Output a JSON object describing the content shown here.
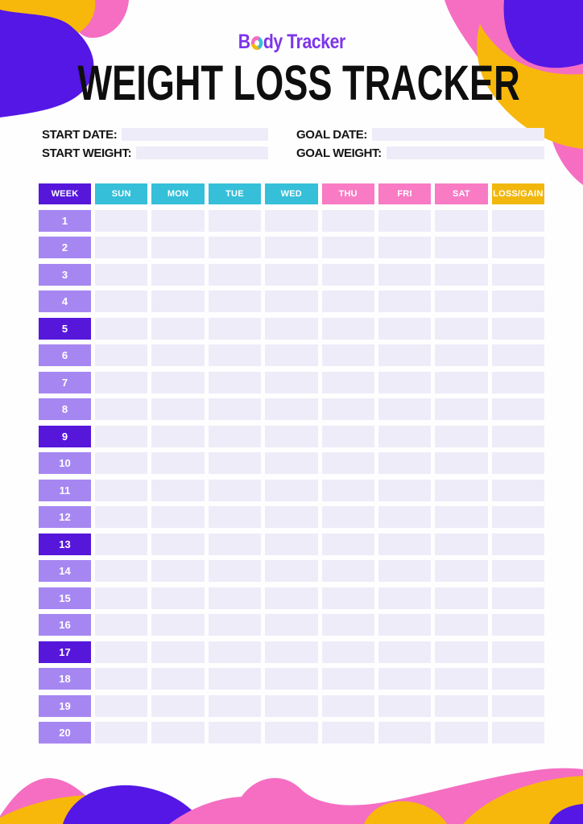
{
  "brand": {
    "logo_text_before_o": "B",
    "logo_text_after_o": "dy Tracker"
  },
  "title": "WEIGHT LOSS TRACKER",
  "fields": [
    {
      "id": "start-date",
      "label": "START DATE:",
      "value": ""
    },
    {
      "id": "goal-date",
      "label": "GOAL DATE:",
      "value": ""
    },
    {
      "id": "start-weight",
      "label": "START WEIGHT:",
      "value": ""
    },
    {
      "id": "goal-weight",
      "label": "GOAL WEIGHT:",
      "value": ""
    }
  ],
  "table": {
    "columns": [
      {
        "label": "WEEK",
        "color": "purple"
      },
      {
        "label": "SUN",
        "color": "cyan"
      },
      {
        "label": "MON",
        "color": "cyan"
      },
      {
        "label": "TUE",
        "color": "cyan"
      },
      {
        "label": "WED",
        "color": "cyan"
      },
      {
        "label": "THU",
        "color": "pink"
      },
      {
        "label": "FRI",
        "color": "pink"
      },
      {
        "label": "SAT",
        "color": "pink"
      },
      {
        "label": "LOSS/GAIN",
        "color": "yellow"
      }
    ],
    "weeks": [
      "1",
      "2",
      "3",
      "4",
      "5",
      "6",
      "7",
      "8",
      "9",
      "10",
      "11",
      "12",
      "13",
      "14",
      "15",
      "16",
      "17",
      "18",
      "19",
      "20"
    ],
    "highlighted_weeks": [
      5,
      9,
      13,
      17
    ],
    "entry_columns_per_week": 8,
    "cell_values": []
  },
  "colors": {
    "logo_purple": "#7d35ea",
    "purple_dark": "#5617db",
    "purple_light": "#a687f2",
    "cyan": "#35bfd9",
    "pink": "#f87bc4",
    "yellow": "#f2b70d",
    "cell": "#efecf9",
    "deco_purple": "#5417e6",
    "deco_pink": "#f56ec2",
    "deco_yellow": "#f7b80b"
  }
}
